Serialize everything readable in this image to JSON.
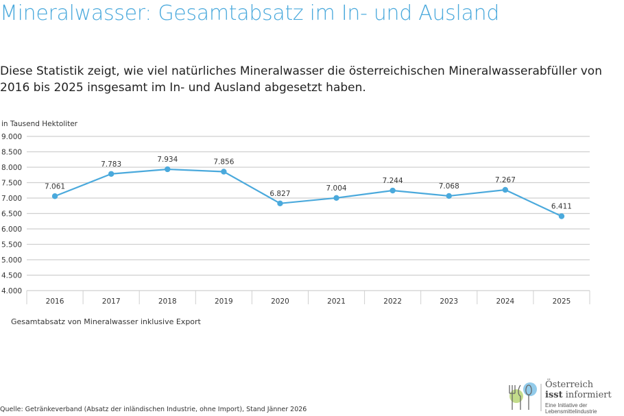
{
  "title": "Mineralwasser: Gesamtabsatz im In- und Ausland",
  "subtitle": "Diese Statistik zeigt, wie viel natürliches Mineralwasser die österreichischen Mineralwasserabfüller von 2016 bis 2025 insgesamt im In- und Ausland abgesetzt haben.",
  "note": "Gesamtabsatz von Mineralwasser inklusive Export",
  "source": "Quelle: Getränkeverband (Absatz der inländischen Industrie, ohne Import),  Stand Jänner 2026",
  "logo": {
    "line1": "Österreich",
    "line2a": "isst",
    "line2b": " informiert",
    "line3": "Eine Initiative der Lebensmittelindustrie"
  },
  "chart_data": {
    "type": "line",
    "ylabel": "in Tausend Hektoliter",
    "categories": [
      "2016",
      "2017",
      "2018",
      "2019",
      "2020",
      "2021",
      "2022",
      "2023",
      "2024",
      "2025"
    ],
    "values": [
      7061,
      7783,
      7934,
      7856,
      6827,
      7004,
      7244,
      7068,
      7267,
      6411
    ],
    "value_labels": [
      "7.061",
      "7.783",
      "7.934",
      "7.856",
      "6.827",
      "7.004",
      "7.244",
      "7.068",
      "7.267",
      "6.411"
    ],
    "ylim": [
      4000,
      9000
    ],
    "yticks": [
      4000,
      4500,
      5000,
      5500,
      6000,
      6500,
      7000,
      7500,
      8000,
      8500,
      9000
    ],
    "ytick_labels": [
      "4.000",
      "4.500",
      "5.000",
      "5.500",
      "6.000",
      "6.500",
      "7.000",
      "7.500",
      "8.000",
      "8.500",
      "9.000"
    ],
    "grid": true,
    "color": "#4aa9dc"
  }
}
